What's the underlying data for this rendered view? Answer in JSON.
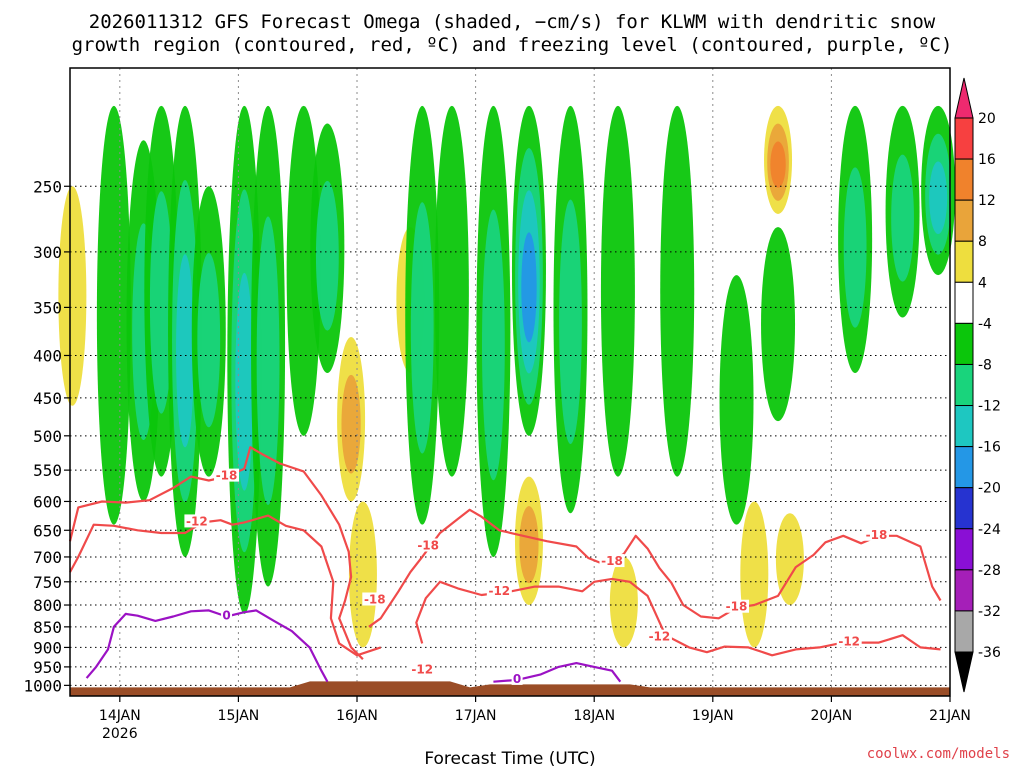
{
  "chart_data": {
    "type": "heatmap",
    "title_line1": "2026011312 GFS Forecast Omega (shaded, −cm/s) for KLWM with dendritic snow",
    "title_line2": "growth region (contoured, red, ºC) and freezing level (contoured, purple, ºC)",
    "xlabel": "Forecast Time (UTC)",
    "ylabel": "",
    "credit": "coolwx.com/models",
    "x_range_days": [
      13.58,
      21.0
    ],
    "x_ticks": [
      {
        "value": 14,
        "label": "14JAN"
      },
      {
        "value": 15,
        "label": "15JAN"
      },
      {
        "value": 16,
        "label": "16JAN"
      },
      {
        "value": 17,
        "label": "17JAN"
      },
      {
        "value": 18,
        "label": "18JAN"
      },
      {
        "value": 19,
        "label": "19JAN"
      },
      {
        "value": 20,
        "label": "20JAN"
      },
      {
        "value": 21,
        "label": "21JAN"
      }
    ],
    "x_sublabel": {
      "value": 14,
      "label": "2026"
    },
    "y_range_hpa": [
      1030,
      180
    ],
    "y_ticks": [
      250,
      300,
      350,
      400,
      450,
      500,
      550,
      600,
      650,
      700,
      750,
      800,
      850,
      900,
      950,
      1000
    ],
    "grid": true,
    "colorbar": {
      "levels": [
        20,
        16,
        12,
        8,
        4,
        -4,
        -8,
        -12,
        -16,
        -20,
        -24,
        -28,
        -32,
        -36
      ],
      "colors": [
        "#ee2a6f",
        "#f74040",
        "#f0822c",
        "#e9a43a",
        "#eede3e",
        "#ffffff",
        "#0bc60b",
        "#19d47c",
        "#1ec7c1",
        "#2497e6",
        "#2633d0",
        "#8a0fd5",
        "#a51fb8",
        "#a8a8a8",
        "#000000"
      ]
    },
    "omega_plumes": [
      {
        "day": 13.95,
        "top": 200,
        "bottom": 640,
        "value": -8
      },
      {
        "day": 14.2,
        "top": 220,
        "bottom": 600,
        "value": -10
      },
      {
        "day": 14.35,
        "top": 200,
        "bottom": 560,
        "value": -12
      },
      {
        "day": 14.55,
        "top": 200,
        "bottom": 700,
        "value": -14
      },
      {
        "day": 14.75,
        "top": 250,
        "bottom": 560,
        "value": -9
      },
      {
        "day": 15.05,
        "top": 200,
        "bottom": 820,
        "value": -16
      },
      {
        "day": 15.25,
        "top": 200,
        "bottom": 760,
        "value": -10
      },
      {
        "day": 15.55,
        "top": 200,
        "bottom": 500,
        "value": -8
      },
      {
        "day": 15.75,
        "top": 210,
        "bottom": 420,
        "value": -9
      },
      {
        "day": 16.55,
        "top": 200,
        "bottom": 640,
        "value": -10
      },
      {
        "day": 16.8,
        "top": 200,
        "bottom": 560,
        "value": -8
      },
      {
        "day": 17.15,
        "top": 200,
        "bottom": 700,
        "value": -12
      },
      {
        "day": 17.45,
        "top": 200,
        "bottom": 500,
        "value": -18
      },
      {
        "day": 17.8,
        "top": 200,
        "bottom": 620,
        "value": -9
      },
      {
        "day": 18.2,
        "top": 200,
        "bottom": 560,
        "value": -8
      },
      {
        "day": 18.7,
        "top": 200,
        "bottom": 560,
        "value": -8
      },
      {
        "day": 19.2,
        "top": 320,
        "bottom": 640,
        "value": -7
      },
      {
        "day": 19.55,
        "top": 280,
        "bottom": 480,
        "value": -8
      },
      {
        "day": 20.2,
        "top": 200,
        "bottom": 420,
        "value": -10
      },
      {
        "day": 20.6,
        "top": 200,
        "bottom": 360,
        "value": -12
      },
      {
        "day": 20.9,
        "top": 200,
        "bottom": 320,
        "value": -14
      }
    ],
    "rising_plumes": [
      {
        "day": 13.6,
        "top": 250,
        "bottom": 460,
        "value": 6
      },
      {
        "day": 15.95,
        "top": 380,
        "bottom": 600,
        "value": 10
      },
      {
        "day": 16.05,
        "top": 600,
        "bottom": 900,
        "value": 6
      },
      {
        "day": 16.45,
        "top": 280,
        "bottom": 420,
        "value": 8
      },
      {
        "day": 17.45,
        "top": 560,
        "bottom": 800,
        "value": 12
      },
      {
        "day": 18.25,
        "top": 700,
        "bottom": 900,
        "value": 6
      },
      {
        "day": 19.35,
        "top": 600,
        "bottom": 900,
        "value": 6
      },
      {
        "day": 19.55,
        "top": 200,
        "bottom": 270,
        "value": 14
      },
      {
        "day": 19.65,
        "top": 620,
        "bottom": 800,
        "value": 7
      }
    ],
    "contours": [
      {
        "color": "#f04a4a",
        "label": "-18",
        "points": [
          [
            13.58,
            670
          ],
          [
            13.65,
            610
          ],
          [
            13.85,
            600
          ],
          [
            14.05,
            602
          ],
          [
            14.25,
            598
          ],
          [
            14.45,
            578
          ],
          [
            14.6,
            560
          ],
          [
            14.75,
            566
          ],
          [
            14.9,
            560
          ],
          [
            15.05,
            548
          ],
          [
            15.1,
            516
          ],
          [
            15.2,
            526
          ],
          [
            15.35,
            540
          ],
          [
            15.55,
            552
          ],
          [
            15.7,
            590
          ],
          [
            15.85,
            640
          ],
          [
            15.93,
            690
          ],
          [
            15.95,
            740
          ],
          [
            15.9,
            790
          ],
          [
            15.85,
            830
          ],
          [
            15.95,
            900
          ],
          [
            16.05,
            930
          ]
        ]
      },
      {
        "color": "#f04a4a",
        "label": "-12",
        "points": [
          [
            13.58,
            730
          ],
          [
            13.65,
            700
          ],
          [
            13.78,
            640
          ],
          [
            13.95,
            642
          ],
          [
            14.15,
            650
          ],
          [
            14.35,
            655
          ],
          [
            14.55,
            655
          ],
          [
            14.7,
            636
          ],
          [
            14.85,
            632
          ],
          [
            14.95,
            640
          ],
          [
            15.05,
            636
          ],
          [
            15.25,
            624
          ],
          [
            15.4,
            642
          ],
          [
            15.55,
            650
          ],
          [
            15.7,
            680
          ],
          [
            15.8,
            750
          ],
          [
            15.78,
            830
          ],
          [
            15.85,
            890
          ],
          [
            16.0,
            920
          ],
          [
            16.2,
            900
          ]
        ]
      },
      {
        "color": "#f04a4a",
        "label": "-18",
        "points": [
          [
            16.1,
            850
          ],
          [
            16.2,
            830
          ],
          [
            16.35,
            770
          ],
          [
            16.45,
            730
          ],
          [
            16.55,
            700
          ],
          [
            16.7,
            655
          ],
          [
            16.85,
            630
          ],
          [
            16.95,
            614
          ],
          [
            17.05,
            626
          ],
          [
            17.2,
            650
          ],
          [
            17.4,
            660
          ],
          [
            17.6,
            670
          ],
          [
            17.85,
            680
          ],
          [
            17.95,
            702
          ],
          [
            18.1,
            716
          ],
          [
            18.25,
            694
          ],
          [
            18.35,
            660
          ],
          [
            18.45,
            684
          ],
          [
            18.55,
            722
          ],
          [
            18.65,
            752
          ],
          [
            18.75,
            800
          ],
          [
            18.9,
            826
          ],
          [
            19.05,
            830
          ],
          [
            19.2,
            806
          ],
          [
            19.35,
            800
          ],
          [
            19.55,
            780
          ],
          [
            19.7,
            720
          ],
          [
            19.85,
            696
          ],
          [
            19.95,
            672
          ],
          [
            20.1,
            660
          ],
          [
            20.25,
            674
          ],
          [
            20.4,
            660
          ],
          [
            20.55,
            660
          ],
          [
            20.75,
            680
          ],
          [
            20.85,
            760
          ],
          [
            20.92,
            790
          ]
        ]
      },
      {
        "color": "#f04a4a",
        "label": "-12",
        "points": [
          [
            16.55,
            890
          ],
          [
            16.5,
            840
          ],
          [
            16.58,
            785
          ],
          [
            16.7,
            750
          ],
          [
            16.85,
            764
          ],
          [
            17.05,
            778
          ],
          [
            17.3,
            770
          ],
          [
            17.5,
            760
          ],
          [
            17.7,
            760
          ],
          [
            17.9,
            770
          ],
          [
            18.0,
            750
          ],
          [
            18.15,
            744
          ],
          [
            18.3,
            750
          ],
          [
            18.45,
            780
          ],
          [
            18.6,
            870
          ],
          [
            18.8,
            900
          ],
          [
            18.95,
            912
          ],
          [
            19.1,
            898
          ],
          [
            19.3,
            900
          ],
          [
            19.5,
            920
          ],
          [
            19.7,
            905
          ],
          [
            19.9,
            900
          ],
          [
            20.1,
            888
          ],
          [
            20.4,
            888
          ],
          [
            20.6,
            870
          ],
          [
            20.75,
            900
          ],
          [
            20.92,
            905
          ]
        ]
      },
      {
        "color": "#9b12c4",
        "label": "0",
        "points": [
          [
            13.72,
            980
          ],
          [
            13.8,
            950
          ],
          [
            13.9,
            905
          ],
          [
            13.95,
            850
          ],
          [
            14.05,
            820
          ],
          [
            14.15,
            824
          ],
          [
            14.3,
            836
          ],
          [
            14.45,
            826
          ],
          [
            14.6,
            814
          ],
          [
            14.75,
            812
          ],
          [
            14.9,
            826
          ],
          [
            15.05,
            816
          ],
          [
            15.15,
            812
          ],
          [
            15.3,
            836
          ],
          [
            15.45,
            860
          ],
          [
            15.6,
            900
          ],
          [
            15.7,
            960
          ],
          [
            15.75,
            990
          ]
        ]
      },
      {
        "color": "#9b12c4",
        "label": "0",
        "points": [
          [
            17.15,
            990
          ],
          [
            17.35,
            985
          ],
          [
            17.55,
            970
          ],
          [
            17.7,
            950
          ],
          [
            17.85,
            940
          ],
          [
            18.0,
            950
          ],
          [
            18.15,
            960
          ],
          [
            18.22,
            990
          ]
        ]
      }
    ],
    "contour_label_positions": [
      {
        "label": "-18",
        "day": 14.9,
        "p": 560,
        "color": "#f04a4a"
      },
      {
        "label": "-12",
        "day": 14.65,
        "p": 636,
        "color": "#f04a4a"
      },
      {
        "label": "-18",
        "day": 16.6,
        "p": 680,
        "color": "#f04a4a"
      },
      {
        "label": "-18",
        "day": 16.15,
        "p": 790,
        "color": "#f04a4a"
      },
      {
        "label": "-18",
        "day": 18.15,
        "p": 710,
        "color": "#f04a4a"
      },
      {
        "label": "-18",
        "day": 19.2,
        "p": 806,
        "color": "#f04a4a"
      },
      {
        "label": "-18",
        "day": 20.38,
        "p": 660,
        "color": "#f04a4a"
      },
      {
        "label": "-12",
        "day": 17.2,
        "p": 772,
        "color": "#f04a4a"
      },
      {
        "label": "-12",
        "day": 16.55,
        "p": 960,
        "color": "#f04a4a"
      },
      {
        "label": "-12",
        "day": 18.55,
        "p": 876,
        "color": "#f04a4a"
      },
      {
        "label": "-12",
        "day": 20.15,
        "p": 888,
        "color": "#f04a4a"
      },
      {
        "label": "0",
        "day": 14.9,
        "p": 826,
        "color": "#9b12c4"
      },
      {
        "label": "0",
        "day": 17.35,
        "p": 985,
        "color": "#9b12c4"
      }
    ],
    "terrain": {
      "color": "#9a4d27",
      "surface_hpa": 1000
    }
  }
}
